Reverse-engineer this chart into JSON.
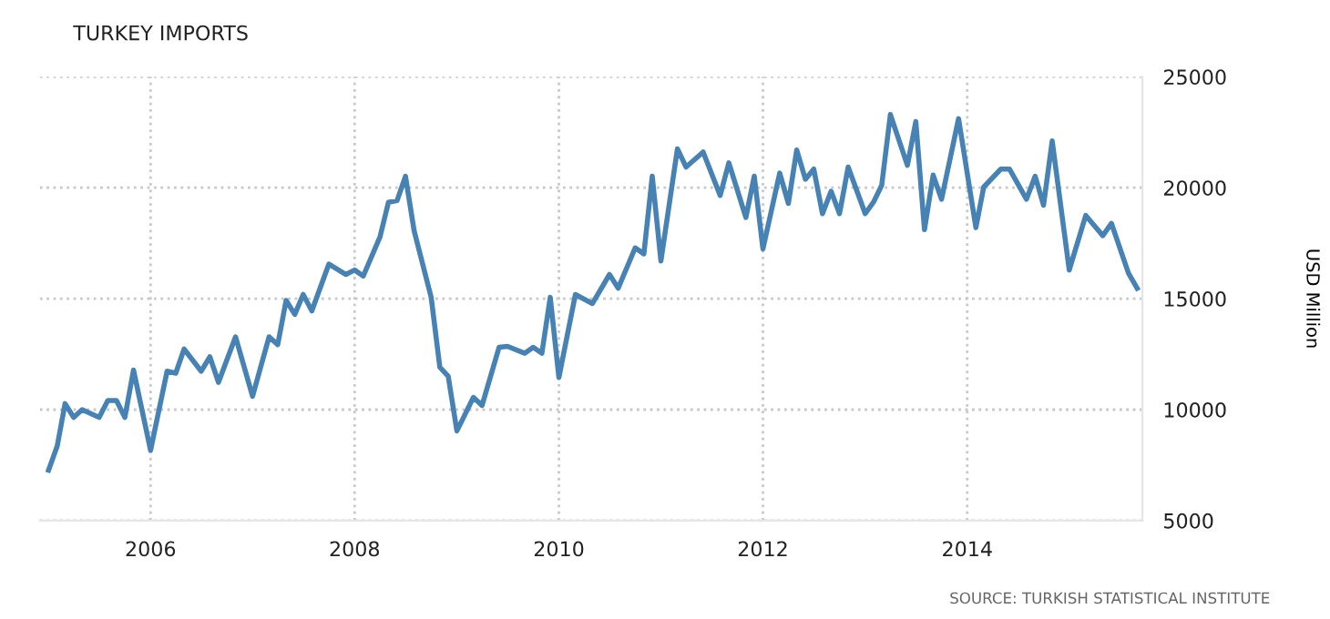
{
  "chart_data": {
    "type": "line",
    "title": "TURKEY IMPORTS",
    "ylabel": "USD Million",
    "annotations": [
      "SOURCE: TURKISH STATISTICAL INSTITUTE"
    ],
    "x": [
      "2005-01",
      "2005-02",
      "2005-03",
      "2005-04",
      "2005-05",
      "2005-07",
      "2005-08",
      "2005-09",
      "2005-10",
      "2005-11",
      "2006-01",
      "2006-03",
      "2006-04",
      "2006-05",
      "2006-07",
      "2006-08",
      "2006-09",
      "2006-11",
      "2007-01",
      "2007-03",
      "2007-04",
      "2007-05",
      "2007-06",
      "2007-07",
      "2007-08",
      "2007-10",
      "2007-12",
      "2008-01",
      "2008-02",
      "2008-04",
      "2008-05",
      "2008-06",
      "2008-07",
      "2008-08",
      "2008-10",
      "2008-11",
      "2008-12",
      "2009-01",
      "2009-03",
      "2009-04",
      "2009-06",
      "2009-07",
      "2009-09",
      "2009-10",
      "2009-11",
      "2009-12",
      "2010-01",
      "2010-03",
      "2010-05",
      "2010-07",
      "2010-08",
      "2010-10",
      "2010-11",
      "2010-12",
      "2011-01",
      "2011-03",
      "2011-04",
      "2011-06",
      "2011-08",
      "2011-09",
      "2011-11",
      "2011-12",
      "2012-01",
      "2012-03",
      "2012-04",
      "2012-05",
      "2012-06",
      "2012-07",
      "2012-08",
      "2012-09",
      "2012-10",
      "2012-11",
      "2013-01",
      "2013-02",
      "2013-03",
      "2013-04",
      "2013-06",
      "2013-07",
      "2013-08",
      "2013-09",
      "2013-10",
      "2013-12",
      "2014-02",
      "2014-03",
      "2014-05",
      "2014-06",
      "2014-08",
      "2014-09",
      "2014-10",
      "2014-11",
      "2015-01",
      "2015-03",
      "2015-05",
      "2015-06",
      "2015-08",
      "2015-09"
    ],
    "series": [
      {
        "color": "#4682b4",
        "values": [
          7270,
          8360,
          10270,
          9650,
          10000,
          9650,
          10410,
          10410,
          9650,
          11780,
          8170,
          11730,
          11640,
          12730,
          11730,
          12380,
          11230,
          13280,
          10600,
          13280,
          12930,
          14920,
          14290,
          15190,
          14450,
          16560,
          16090,
          16290,
          16020,
          17790,
          19340,
          19420,
          20520,
          18060,
          15060,
          11910,
          11500,
          9040,
          10550,
          10190,
          12810,
          12850,
          12540,
          12810,
          12540,
          15060,
          11450,
          15190,
          14780,
          16090,
          15470,
          17290,
          17020,
          20520,
          16700,
          21750,
          20930,
          21610,
          19650,
          21120,
          18660,
          20520,
          17240,
          20660,
          19290,
          21700,
          20380,
          20840,
          18830,
          19840,
          18830,
          20930,
          18830,
          19380,
          20110,
          23300,
          21010,
          22980,
          18110,
          20570,
          19480,
          23110,
          18200,
          20030,
          20840,
          20840,
          19480,
          20520,
          19210,
          22110,
          16290,
          18750,
          17840,
          18390,
          16150,
          15470
        ]
      }
    ],
    "xlim": [
      "2004-12-01",
      "2015-09-20"
    ],
    "xticks": [
      "2006",
      "2008",
      "2010",
      "2012",
      "2014"
    ],
    "ylim": [
      5000,
      25000
    ],
    "yticks": [
      5000,
      10000,
      15000,
      20000,
      25000
    ],
    "grid": true,
    "line_style": "solid"
  }
}
